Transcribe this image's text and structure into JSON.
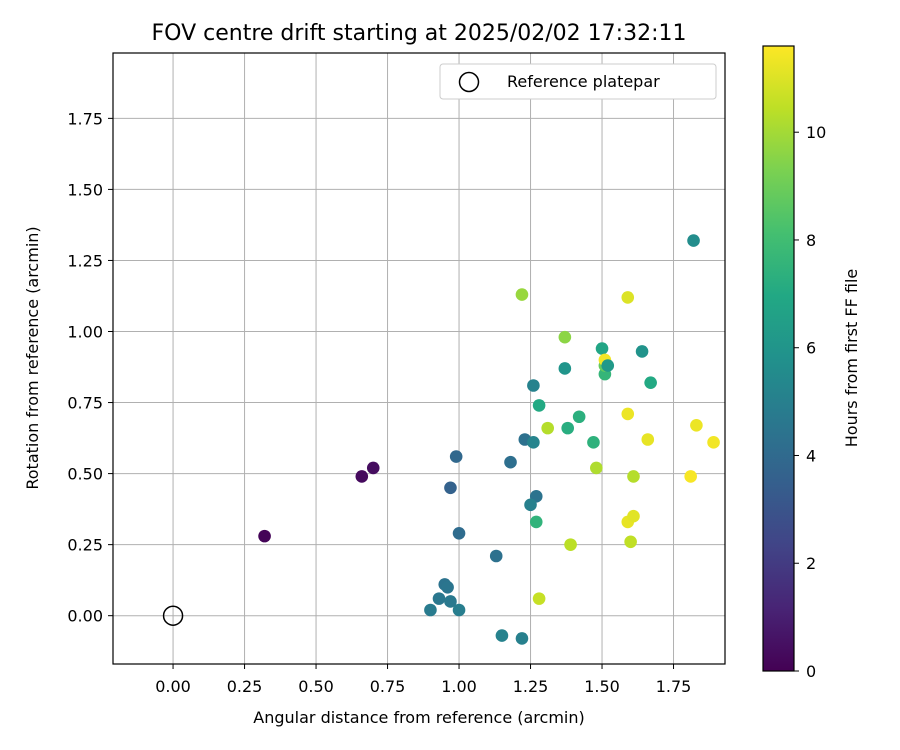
{
  "chart_data": {
    "type": "scatter",
    "title": "FOV centre drift starting at 2025/02/02 17:32:11",
    "xlabel": "Angular distance from reference (arcmin)",
    "ylabel": "Rotation from reference (arcmin)",
    "xlim": [
      -0.21,
      1.93
    ],
    "ylim": [
      -0.17,
      1.98
    ],
    "xticks": [
      0.0,
      0.25,
      0.5,
      0.75,
      1.0,
      1.25,
      1.5,
      1.75
    ],
    "xtick_labels": [
      "0.00",
      "0.25",
      "0.50",
      "0.75",
      "1.00",
      "1.25",
      "1.50",
      "1.75"
    ],
    "yticks": [
      0.0,
      0.25,
      0.5,
      0.75,
      1.0,
      1.25,
      1.5,
      1.75
    ],
    "ytick_labels": [
      "0.00",
      "0.25",
      "0.50",
      "0.75",
      "1.00",
      "1.25",
      "1.50",
      "1.75"
    ],
    "grid": true,
    "colormap": "viridis",
    "colorbar": {
      "label": "Hours from first FF file",
      "range": [
        0,
        11.6
      ],
      "ticks": [
        0,
        2,
        4,
        6,
        8,
        10
      ],
      "tick_labels": [
        "0",
        "2",
        "4",
        "6",
        "8",
        "10"
      ]
    },
    "legend": {
      "placement": "top-right",
      "entries": [
        {
          "label": "Reference platepar",
          "marker": "open-circle"
        }
      ]
    },
    "reference_point": {
      "x": 0.0,
      "y": 0.0
    },
    "points": [
      {
        "x": 0.32,
        "y": 0.28,
        "c": 0.1
      },
      {
        "x": 0.66,
        "y": 0.49,
        "c": 0.3
      },
      {
        "x": 0.7,
        "y": 0.52,
        "c": 0.4
      },
      {
        "x": 0.97,
        "y": 0.45,
        "c": 3.6
      },
      {
        "x": 0.99,
        "y": 0.56,
        "c": 3.9
      },
      {
        "x": 1.0,
        "y": 0.29,
        "c": 4.1
      },
      {
        "x": 0.9,
        "y": 0.02,
        "c": 4.8
      },
      {
        "x": 0.93,
        "y": 0.06,
        "c": 4.6
      },
      {
        "x": 0.95,
        "y": 0.11,
        "c": 4.4
      },
      {
        "x": 0.96,
        "y": 0.1,
        "c": 4.5
      },
      {
        "x": 0.97,
        "y": 0.05,
        "c": 4.7
      },
      {
        "x": 1.0,
        "y": 0.02,
        "c": 4.9
      },
      {
        "x": 1.13,
        "y": 0.21,
        "c": 4.3
      },
      {
        "x": 1.15,
        "y": -0.07,
        "c": 5.1
      },
      {
        "x": 1.22,
        "y": -0.08,
        "c": 5.0
      },
      {
        "x": 1.18,
        "y": 0.54,
        "c": 4.2
      },
      {
        "x": 1.23,
        "y": 0.62,
        "c": 4.3
      },
      {
        "x": 1.26,
        "y": 0.61,
        "c": 5.2
      },
      {
        "x": 1.27,
        "y": 0.42,
        "c": 4.4
      },
      {
        "x": 1.25,
        "y": 0.39,
        "c": 5.0
      },
      {
        "x": 1.26,
        "y": 0.81,
        "c": 5.1
      },
      {
        "x": 1.27,
        "y": 0.33,
        "c": 7.5
      },
      {
        "x": 1.28,
        "y": 0.74,
        "c": 7.0
      },
      {
        "x": 1.22,
        "y": 1.13,
        "c": 9.8
      },
      {
        "x": 1.28,
        "y": 0.06,
        "c": 10.6
      },
      {
        "x": 1.31,
        "y": 0.66,
        "c": 10.3
      },
      {
        "x": 1.37,
        "y": 0.98,
        "c": 9.6
      },
      {
        "x": 1.37,
        "y": 0.87,
        "c": 6.0
      },
      {
        "x": 1.38,
        "y": 0.66,
        "c": 7.2
      },
      {
        "x": 1.39,
        "y": 0.25,
        "c": 10.4
      },
      {
        "x": 1.42,
        "y": 0.7,
        "c": 7.3
      },
      {
        "x": 1.47,
        "y": 0.61,
        "c": 7.4
      },
      {
        "x": 1.48,
        "y": 0.52,
        "c": 10.2
      },
      {
        "x": 1.5,
        "y": 0.94,
        "c": 6.8
      },
      {
        "x": 1.51,
        "y": 0.85,
        "c": 7.6
      },
      {
        "x": 1.51,
        "y": 0.88,
        "c": 8.8
      },
      {
        "x": 1.51,
        "y": 0.9,
        "c": 11.4
      },
      {
        "x": 1.52,
        "y": 0.88,
        "c": 6.2
      },
      {
        "x": 1.59,
        "y": 1.12,
        "c": 11.0
      },
      {
        "x": 1.59,
        "y": 0.71,
        "c": 11.3
      },
      {
        "x": 1.59,
        "y": 0.33,
        "c": 11.2
      },
      {
        "x": 1.61,
        "y": 0.35,
        "c": 11.1
      },
      {
        "x": 1.6,
        "y": 0.26,
        "c": 10.5
      },
      {
        "x": 1.61,
        "y": 0.49,
        "c": 10.3
      },
      {
        "x": 1.64,
        "y": 0.93,
        "c": 5.9
      },
      {
        "x": 1.66,
        "y": 0.62,
        "c": 11.2
      },
      {
        "x": 1.67,
        "y": 0.82,
        "c": 7.0
      },
      {
        "x": 1.81,
        "y": 0.49,
        "c": 11.5
      },
      {
        "x": 1.82,
        "y": 1.32,
        "c": 5.6
      },
      {
        "x": 1.83,
        "y": 0.67,
        "c": 11.3
      },
      {
        "x": 1.89,
        "y": 0.61,
        "c": 11.4
      }
    ]
  }
}
